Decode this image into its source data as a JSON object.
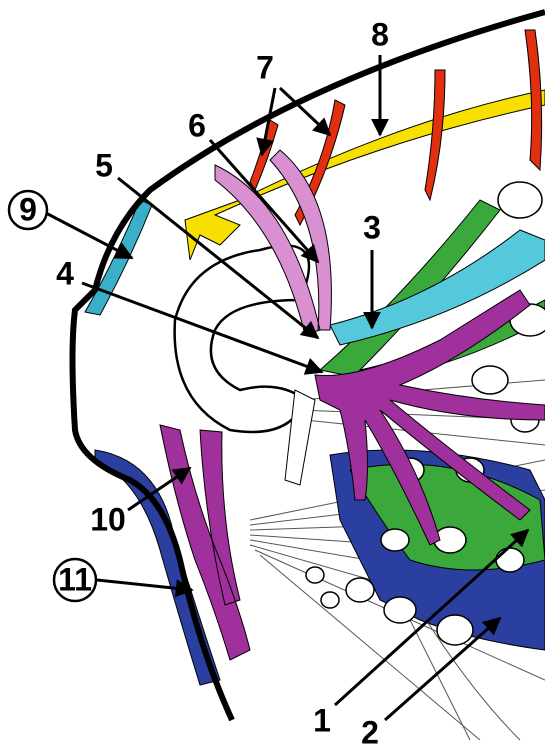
{
  "labels": [
    "8",
    "7",
    "6",
    "5",
    "3",
    "9",
    "4",
    "10",
    "11",
    "1",
    "2"
  ]
}
